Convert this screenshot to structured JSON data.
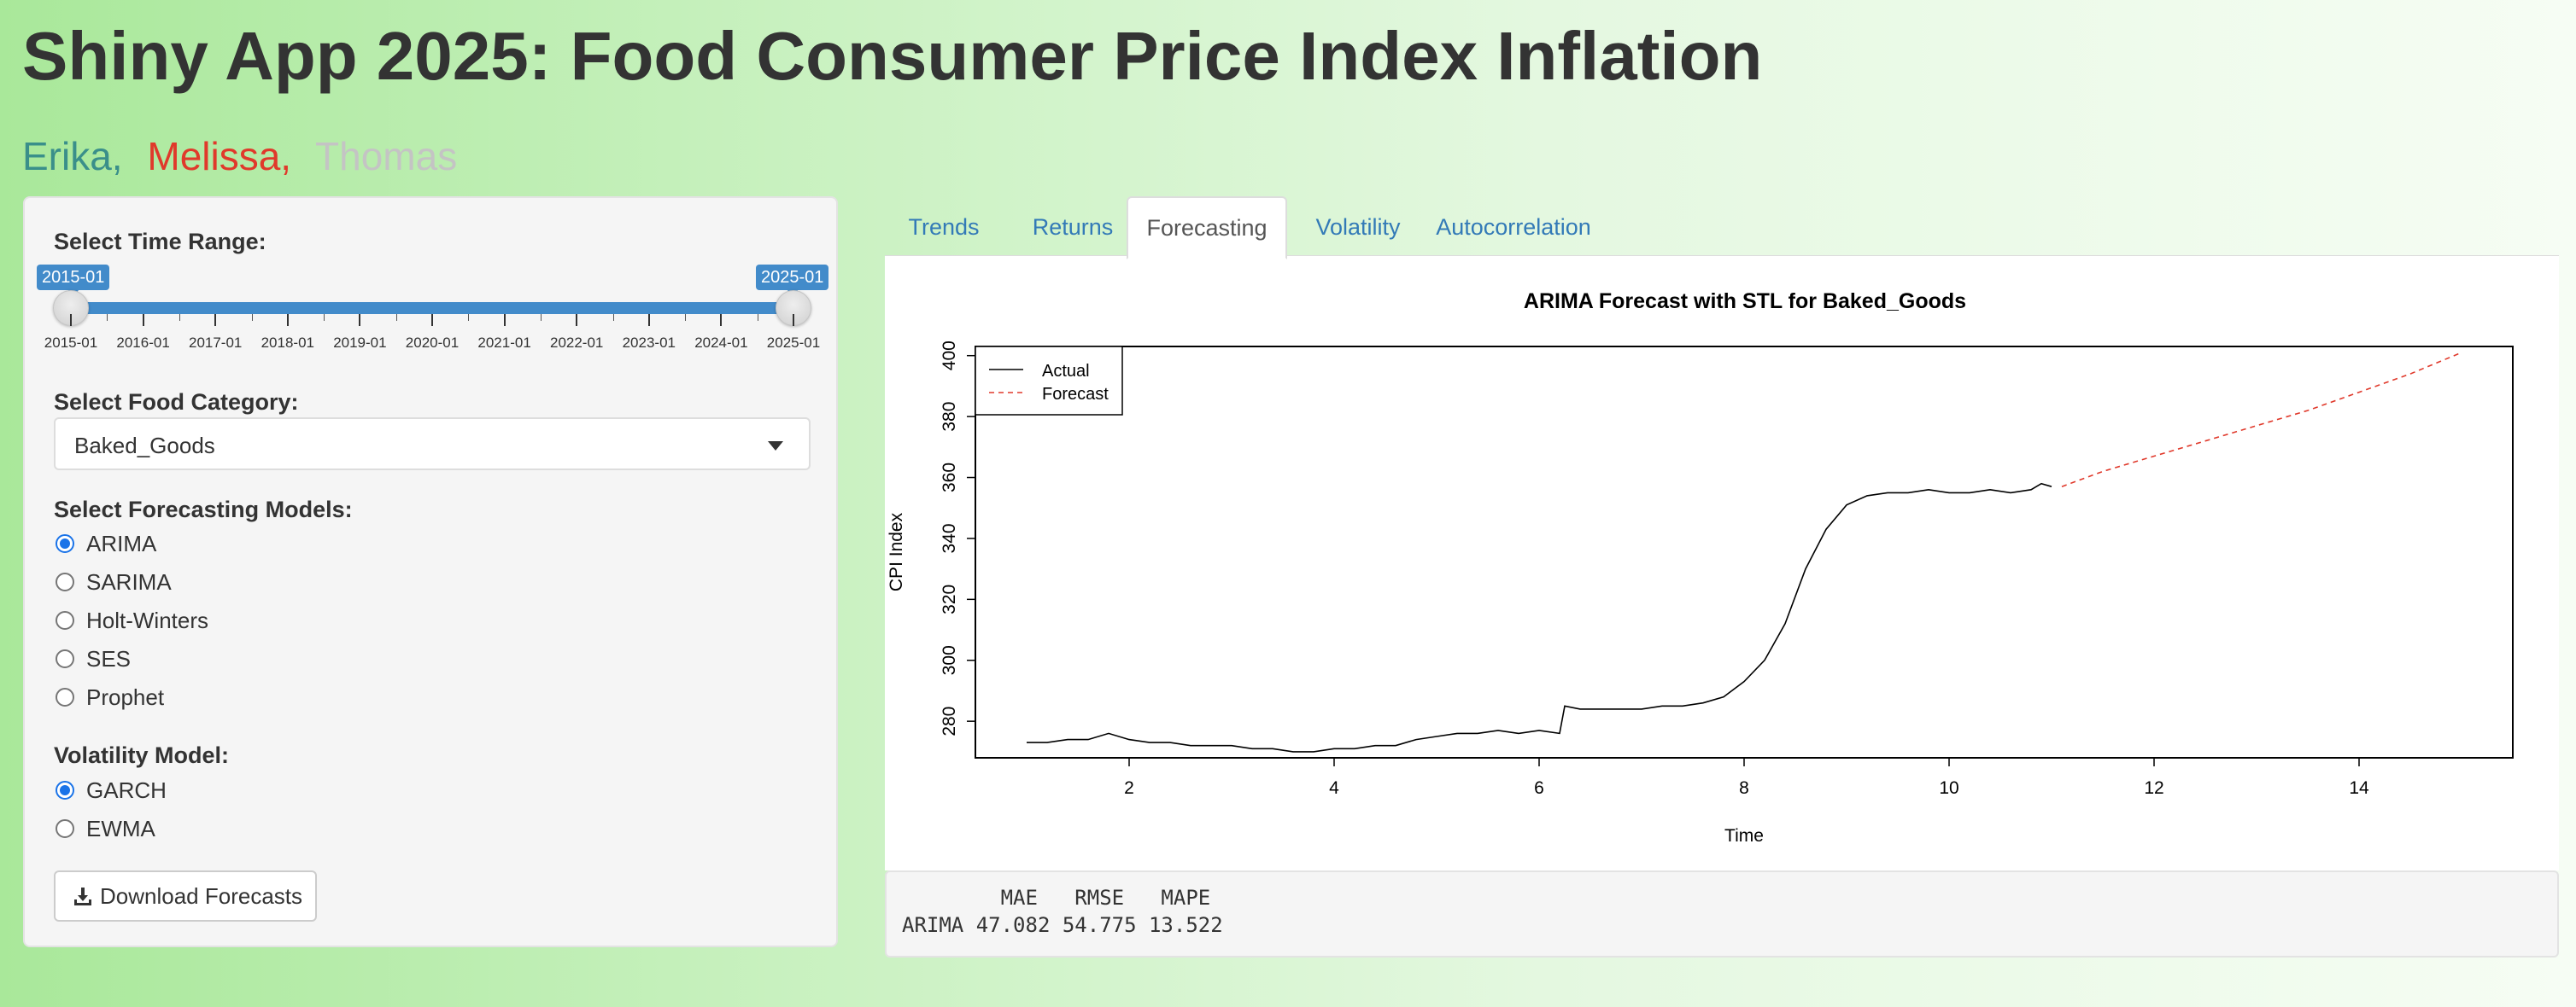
{
  "app": {
    "title": "Shiny App 2025: Food Consumer Price Index Inflation",
    "authors": [
      {
        "name": "Erika,",
        "color": "#3a8f8a"
      },
      {
        "name": "Melissa,",
        "color": "#e0392b"
      },
      {
        "name": "Thomas",
        "color": "#c4c4c4"
      }
    ]
  },
  "sidebar": {
    "time_range": {
      "label": "Select Time Range:",
      "from": "2015-01",
      "to": "2025-01",
      "ticks": [
        "2015-01",
        "2016-01",
        "2017-01",
        "2018-01",
        "2019-01",
        "2020-01",
        "2021-01",
        "2022-01",
        "2023-01",
        "2024-01",
        "2025-01"
      ]
    },
    "category": {
      "label": "Select Food Category:",
      "selected": "Baked_Goods"
    },
    "forecast_models": {
      "label": "Select Forecasting Models:",
      "options": [
        "ARIMA",
        "SARIMA",
        "Holt-Winters",
        "SES",
        "Prophet"
      ],
      "selected": "ARIMA"
    },
    "volatility_model": {
      "label": "Volatility Model:",
      "options": [
        "GARCH",
        "EWMA"
      ],
      "selected": "GARCH"
    },
    "download_label": "Download Forecasts",
    "icons": {
      "download": "download-icon"
    }
  },
  "tabs": [
    {
      "label": "Trends",
      "active": false
    },
    {
      "label": "Returns",
      "active": false
    },
    {
      "label": "Forecasting",
      "active": true
    },
    {
      "label": "Volatility",
      "active": false
    },
    {
      "label": "Autocorrelation",
      "active": false
    }
  ],
  "chart_data": {
    "type": "line",
    "title": "ARIMA Forecast with STL for Baked_Goods",
    "xlabel": "Time",
    "ylabel": "CPI Index",
    "xlim": [
      0.5,
      15.5
    ],
    "ylim": [
      268,
      403
    ],
    "xticks": [
      2,
      4,
      6,
      8,
      10,
      12,
      14
    ],
    "yticks": [
      280,
      300,
      320,
      340,
      360,
      380,
      400
    ],
    "legend": {
      "placement": "top-left",
      "entries": [
        "Actual",
        "Forecast"
      ]
    },
    "series": [
      {
        "name": "Actual",
        "color": "#000000",
        "style": "solid",
        "x": [
          1.0,
          1.2,
          1.4,
          1.6,
          1.8,
          2.0,
          2.2,
          2.4,
          2.6,
          2.8,
          3.0,
          3.2,
          3.4,
          3.6,
          3.8,
          4.0,
          4.2,
          4.4,
          4.6,
          4.8,
          5.0,
          5.2,
          5.4,
          5.6,
          5.8,
          6.0,
          6.2,
          6.25,
          6.4,
          6.6,
          6.8,
          7.0,
          7.2,
          7.4,
          7.6,
          7.8,
          8.0,
          8.2,
          8.4,
          8.6,
          8.8,
          9.0,
          9.2,
          9.4,
          9.6,
          9.8,
          10.0,
          10.2,
          10.4,
          10.6,
          10.8,
          10.9,
          11.0
        ],
        "y": [
          273,
          273,
          274,
          274,
          276,
          274,
          273,
          273,
          272,
          272,
          272,
          271,
          271,
          270,
          270,
          271,
          271,
          272,
          272,
          274,
          275,
          276,
          276,
          277,
          276,
          277,
          276,
          285,
          284,
          284,
          284,
          284,
          285,
          285,
          286,
          288,
          293,
          300,
          312,
          330,
          343,
          351,
          354,
          355,
          355,
          356,
          355,
          355,
          356,
          355,
          356,
          358,
          357
        ]
      },
      {
        "name": "Forecast",
        "color": "#e0392b",
        "style": "dashed",
        "x": [
          11.1,
          11.5,
          12.0,
          12.5,
          13.0,
          13.5,
          14.0,
          14.5,
          15.0
        ],
        "y": [
          357,
          362,
          367,
          372,
          377,
          382,
          388,
          394,
          401
        ]
      }
    ]
  },
  "metrics": {
    "header": "        MAE   RMSE   MAPE",
    "row": "ARIMA 47.082 54.775 13.522"
  }
}
